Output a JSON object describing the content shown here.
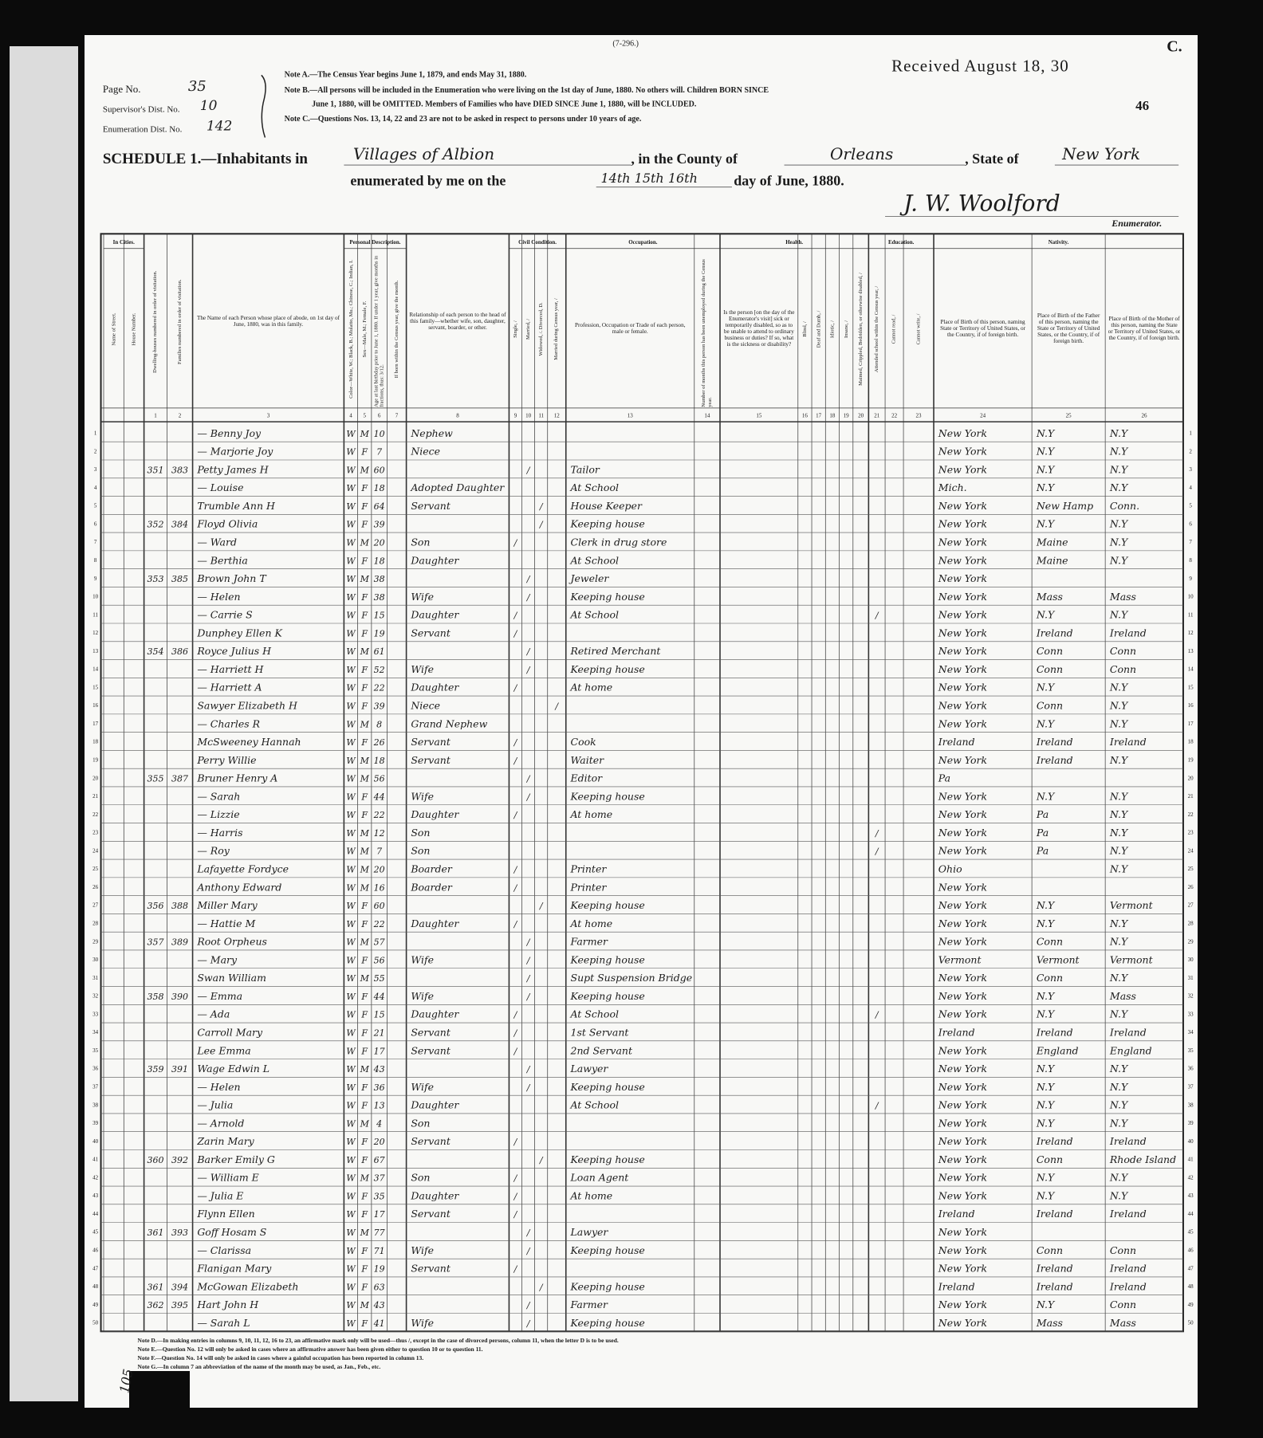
{
  "header": {
    "form_number": "(7-296.)",
    "page_label": "Page No.",
    "page_value": "35",
    "supervisor_label": "Supervisor's Dist. No.",
    "supervisor_value": "10",
    "enumeration_label": "Enumeration Dist. No.",
    "enumeration_value": "142",
    "notes": [
      "Note A.—The Census Year begins June 1, 1879, and ends May 31, 1880.",
      "Note B.—All persons will be included in the Enumeration who were living on the 1st day of June, 1880. No others will. Children BORN SINCE",
      "June 1, 1880, will be OMITTED. Members of Families who have DIED SINCE June 1, 1880, will be INCLUDED.",
      "Note C.—Questions Nos. 13, 14, 22 and 23 are not to be asked in respect to persons under 10 years of age."
    ],
    "received": "Received August 18, 30",
    "sheet_number": "46",
    "corner_mark": "C."
  },
  "schedule": {
    "prefix": "SCHEDULE 1.—Inhabitants in",
    "place": "Villages of Albion",
    "county_label": ", in the County of",
    "county": "Orleans",
    "state_label": ", State of",
    "state": "New York",
    "date_prefix": "enumerated by me on the",
    "dates": "14th 15th 16th",
    "date_suffix": "day of June, 1880.",
    "enumerator": "J. W. Woolford",
    "enumerator_label": "Enumerator."
  },
  "table": {
    "groups": {
      "in_cities": "In Cities.",
      "personal": "Personal Description.",
      "civil": "Civil Condition.",
      "occupation": "Occupation.",
      "health": "Health.",
      "education": "Education.",
      "nativity": "Nativity."
    },
    "columns": {
      "street": {
        "label": "Name of Street."
      },
      "house": {
        "label": "House Number."
      },
      "dwelling": {
        "label": "Dwelling-houses numbered in order of visitation.",
        "number": 1
      },
      "family": {
        "label": "Families numbered in order of visitation.",
        "number": 2
      },
      "name": {
        "label": "The Name of each Person whose place of abode, on 1st day of June, 1880, was in this family.",
        "number": 3
      },
      "color": {
        "label": "Color—White, W.; Black, B.; Mulatto, Mu.; Chinese, C.; Indian, I.",
        "number": 4
      },
      "sex": {
        "label": "Sex—Male, M.; Female, F.",
        "number": 5
      },
      "age": {
        "label": "Age at last birthday prior to June 1, 1880. If under 1 year, give months in fractions, thus: 3/12.",
        "number": 6
      },
      "month": {
        "label": "If born within the Census year, give the month.",
        "number": 7
      },
      "relation": {
        "label": "Relationship of each person to the head of this family—whether wife, son, daughter, servant, boarder, or other.",
        "number": 8
      },
      "single": {
        "label": "Single, /",
        "number": 9
      },
      "married": {
        "label": "Married, /",
        "number": 10
      },
      "widowed": {
        "label": "Widowed, /. Divorced, D.",
        "number": 11
      },
      "married_year": {
        "label": "Married during Census year, /",
        "number": 12
      },
      "occupation": {
        "label": "Profession, Occupation or Trade of each person, male or female.",
        "number": 13
      },
      "unemployed": {
        "label": "Number of months this person has been unemployed during the Census year.",
        "number": 14
      },
      "sickness": {
        "label": "Is the person [on the day of the Enumerator's visit] sick or temporarily disabled, so as to be unable to attend to ordinary business or duties? If so, what is the sickness or disability?",
        "number": 15
      },
      "blind": {
        "label": "Blind, /",
        "number": 16
      },
      "deaf": {
        "label": "Deaf and Dumb, /",
        "number": 17
      },
      "idiotic": {
        "label": "Idiotic, /",
        "number": 18
      },
      "insane": {
        "label": "Insane, /",
        "number": 19
      },
      "maimed": {
        "label": "Maimed, Crippled, Bedridden, or otherwise disabled, /",
        "number": 20
      },
      "school": {
        "label": "Attended school within the Census year, /",
        "number": 21
      },
      "read": {
        "label": "Cannot read, /",
        "number": 22
      },
      "write": {
        "label": "Cannot write, /",
        "number": 23
      },
      "birth": {
        "label": "Place of Birth of this person, naming State or Territory of United States, or the Country, if of foreign birth.",
        "number": 24
      },
      "father": {
        "label": "Place of Birth of the Father of this person, naming the State or Territory of United States, or the Country, if of foreign birth.",
        "number": 25
      },
      "mother": {
        "label": "Place of Birth of the Mother of this person, naming the State or Territory of United States, or the Country, if of foreign birth.",
        "number": 26
      }
    },
    "rows": [
      {
        "line": 1,
        "name": "— Benny Joy",
        "color": "W",
        "sex": "M",
        "age": 10,
        "relation": "Nephew",
        "birth": "New York",
        "father": "N.Y",
        "mother": "N.Y"
      },
      {
        "line": 2,
        "name": "— Marjorie Joy",
        "color": "W",
        "sex": "F",
        "age": 7,
        "relation": "Niece",
        "birth": "New York",
        "father": "N.Y",
        "mother": "N.Y"
      },
      {
        "line": 3,
        "dwelling": 351,
        "family": 383,
        "name": "Petty James H",
        "color": "W",
        "sex": "M",
        "age": 60,
        "married": "/",
        "occupation": "Tailor",
        "birth": "New York",
        "father": "N.Y",
        "mother": "N.Y"
      },
      {
        "line": 4,
        "name": "— Louise",
        "color": "W",
        "sex": "F",
        "age": 18,
        "relation": "Adopted Daughter",
        "occupation": "At School",
        "birth": "Mich.",
        "father": "N.Y",
        "mother": "N.Y"
      },
      {
        "line": 5,
        "name": "Trumble Ann H",
        "color": "W",
        "sex": "F",
        "age": 64,
        "relation": "Servant",
        "widowed": "/",
        "occupation": "House Keeper",
        "birth": "New York",
        "father": "New Hamp",
        "mother": "Conn."
      },
      {
        "line": 6,
        "dwelling": 352,
        "family": 384,
        "name": "Floyd Olivia",
        "color": "W",
        "sex": "F",
        "age": 39,
        "widowed": "/",
        "occupation": "Keeping house",
        "birth": "New York",
        "father": "N.Y",
        "mother": "N.Y"
      },
      {
        "line": 7,
        "name": "— Ward",
        "color": "W",
        "sex": "M",
        "age": 20,
        "relation": "Son",
        "single": "/",
        "occupation": "Clerk in drug store",
        "birth": "New York",
        "father": "Maine",
        "mother": "N.Y"
      },
      {
        "line": 8,
        "name": "— Berthia",
        "color": "W",
        "sex": "F",
        "age": 18,
        "relation": "Daughter",
        "occupation": "At School",
        "birth": "New York",
        "father": "Maine",
        "mother": "N.Y"
      },
      {
        "line": 9,
        "dwelling": 353,
        "family": 385,
        "name": "Brown John T",
        "color": "W",
        "sex": "M",
        "age": 38,
        "married": "/",
        "occupation": "Jeweler",
        "birth": "New York"
      },
      {
        "line": 10,
        "name": "— Helen",
        "color": "W",
        "sex": "F",
        "age": 38,
        "relation": "Wife",
        "married": "/",
        "occupation": "Keeping house",
        "birth": "New York",
        "father": "Mass",
        "mother": "Mass"
      },
      {
        "line": 11,
        "name": "— Carrie S",
        "color": "W",
        "sex": "F",
        "age": 15,
        "relation": "Daughter",
        "single": "/",
        "occupation": "At School",
        "school": "/",
        "birth": "New York",
        "father": "N.Y",
        "mother": "N.Y"
      },
      {
        "line": 12,
        "name": "Dunphey Ellen K",
        "color": "W",
        "sex": "F",
        "age": 19,
        "relation": "Servant",
        "single": "/",
        "birth": "New York",
        "father": "Ireland",
        "mother": "Ireland"
      },
      {
        "line": 13,
        "dwelling": 354,
        "family": 386,
        "name": "Royce Julius H",
        "color": "W",
        "sex": "M",
        "age": 61,
        "married": "/",
        "occupation": "Retired Merchant",
        "birth": "New York",
        "father": "Conn",
        "mother": "Conn"
      },
      {
        "line": 14,
        "name": "— Harriett H",
        "color": "W",
        "sex": "F",
        "age": 52,
        "relation": "Wife",
        "married": "/",
        "occupation": "Keeping house",
        "birth": "New York",
        "father": "Conn",
        "mother": "Conn"
      },
      {
        "line": 15,
        "name": "— Harriett A",
        "color": "W",
        "sex": "F",
        "age": 22,
        "relation": "Daughter",
        "single": "/",
        "occupation": "At home",
        "birth": "New York",
        "father": "N.Y",
        "mother": "N.Y"
      },
      {
        "line": 16,
        "name": "Sawyer Elizabeth H",
        "color": "W",
        "sex": "F",
        "age": 39,
        "relation": "Niece",
        "married_year": "/",
        "birth": "New York",
        "father": "Conn",
        "mother": "N.Y"
      },
      {
        "line": 17,
        "name": "— Charles R",
        "color": "W",
        "sex": "M",
        "age": 8,
        "relation": "Grand Nephew",
        "birth": "New York",
        "father": "N.Y",
        "mother": "N.Y"
      },
      {
        "line": 18,
        "name": "McSweeney Hannah",
        "color": "W",
        "sex": "F",
        "age": 26,
        "relation": "Servant",
        "single": "/",
        "occupation": "Cook",
        "birth": "Ireland",
        "father": "Ireland",
        "mother": "Ireland"
      },
      {
        "line": 19,
        "name": "Perry Willie",
        "color": "W",
        "sex": "M",
        "age": 18,
        "relation": "Servant",
        "single": "/",
        "occupation": "Waiter",
        "birth": "New York",
        "father": "Ireland",
        "mother": "N.Y"
      },
      {
        "line": 20,
        "dwelling": 355,
        "family": 387,
        "name": "Bruner Henry A",
        "color": "W",
        "sex": "M",
        "age": 56,
        "married": "/",
        "occupation": "Editor",
        "birth": "Pa"
      },
      {
        "line": 21,
        "name": "— Sarah",
        "color": "W",
        "sex": "F",
        "age": 44,
        "relation": "Wife",
        "married": "/",
        "occupation": "Keeping house",
        "birth": "New York",
        "father": "N.Y",
        "mother": "N.Y"
      },
      {
        "line": 22,
        "name": "— Lizzie",
        "color": "W",
        "sex": "F",
        "age": 22,
        "relation": "Daughter",
        "single": "/",
        "occupation": "At home",
        "birth": "New York",
        "father": "Pa",
        "mother": "N.Y"
      },
      {
        "line": 23,
        "name": "— Harris",
        "color": "W",
        "sex": "M",
        "age": 12,
        "relation": "Son",
        "school": "/",
        "birth": "New York",
        "father": "Pa",
        "mother": "N.Y"
      },
      {
        "line": 24,
        "name": "— Roy",
        "color": "W",
        "sex": "M",
        "age": 7,
        "relation": "Son",
        "school": "/",
        "birth": "New York",
        "father": "Pa",
        "mother": "N.Y"
      },
      {
        "line": 25,
        "name": "Lafayette Fordyce",
        "color": "W",
        "sex": "M",
        "age": 20,
        "relation": "Boarder",
        "single": "/",
        "occupation": "Printer",
        "birth": "Ohio",
        "mother": "N.Y"
      },
      {
        "line": 26,
        "name": "Anthony Edward",
        "color": "W",
        "sex": "M",
        "age": 16,
        "relation": "Boarder",
        "single": "/",
        "occupation": "Printer",
        "birth": "New York"
      },
      {
        "line": 27,
        "dwelling": 356,
        "family": 388,
        "name": "Miller Mary",
        "color": "W",
        "sex": "F",
        "age": 60,
        "widowed": "/",
        "occupation": "Keeping house",
        "birth": "New York",
        "father": "N.Y",
        "mother": "Vermont"
      },
      {
        "line": 28,
        "name": "— Hattie M",
        "color": "W",
        "sex": "F",
        "age": 22,
        "relation": "Daughter",
        "single": "/",
        "occupation": "At home",
        "birth": "New York",
        "father": "N.Y",
        "mother": "N.Y"
      },
      {
        "line": 29,
        "dwelling": 357,
        "family": 389,
        "name": "Root Orpheus",
        "color": "W",
        "sex": "M",
        "age": 57,
        "married": "/",
        "occupation": "Farmer",
        "birth": "New York",
        "father": "Conn",
        "mother": "N.Y"
      },
      {
        "line": 30,
        "name": "— Mary",
        "color": "W",
        "sex": "F",
        "age": 56,
        "relation": "Wife",
        "married": "/",
        "occupation": "Keeping house",
        "birth": "Vermont",
        "father": "Vermont",
        "mother": "Vermont"
      },
      {
        "line": 31,
        "name": "Swan William",
        "color": "W",
        "sex": "M",
        "age": 55,
        "married": "/",
        "occupation": "Supt Suspension Bridge",
        "birth": "New York",
        "father": "Conn",
        "mother": "N.Y"
      },
      {
        "line": 32,
        "dwelling": 358,
        "family": 390,
        "name": "— Emma",
        "color": "W",
        "sex": "F",
        "age": 44,
        "relation": "Wife",
        "married": "/",
        "occupation": "Keeping house",
        "birth": "New York",
        "father": "N.Y",
        "mother": "Mass"
      },
      {
        "line": 33,
        "name": "— Ada",
        "color": "W",
        "sex": "F",
        "age": 15,
        "relation": "Daughter",
        "single": "/",
        "occupation": "At School",
        "school": "/",
        "birth": "New York",
        "father": "N.Y",
        "mother": "N.Y"
      },
      {
        "line": 34,
        "name": "Carroll Mary",
        "color": "W",
        "sex": "F",
        "age": 21,
        "relation": "Servant",
        "single": "/",
        "occupation": "1st Servant",
        "birth": "Ireland",
        "father": "Ireland",
        "mother": "Ireland"
      },
      {
        "line": 35,
        "name": "Lee Emma",
        "color": "W",
        "sex": "F",
        "age": 17,
        "relation": "Servant",
        "single": "/",
        "occupation": "2nd Servant",
        "birth": "New York",
        "father": "England",
        "mother": "England"
      },
      {
        "line": 36,
        "dwelling": 359,
        "family": 391,
        "name": "Wage Edwin L",
        "color": "W",
        "sex": "M",
        "age": 43,
        "married": "/",
        "occupation": "Lawyer",
        "birth": "New York",
        "father": "N.Y",
        "mother": "N.Y"
      },
      {
        "line": 37,
        "name": "— Helen",
        "color": "W",
        "sex": "F",
        "age": 36,
        "relation": "Wife",
        "married": "/",
        "occupation": "Keeping house",
        "birth": "New York",
        "father": "N.Y",
        "mother": "N.Y"
      },
      {
        "line": 38,
        "name": "— Julia",
        "color": "W",
        "sex": "F",
        "age": 13,
        "relation": "Daughter",
        "occupation": "At School",
        "school": "/",
        "birth": "New York",
        "father": "N.Y",
        "mother": "N.Y"
      },
      {
        "line": 39,
        "name": "— Arnold",
        "color": "W",
        "sex": "M",
        "age": 4,
        "relation": "Son",
        "birth": "New York",
        "father": "N.Y",
        "mother": "N.Y"
      },
      {
        "line": 40,
        "name": "Zarin Mary",
        "color": "W",
        "sex": "F",
        "age": 20,
        "relation": "Servant",
        "single": "/",
        "birth": "New York",
        "father": "Ireland",
        "mother": "Ireland"
      },
      {
        "line": 41,
        "dwelling": 360,
        "family": 392,
        "name": "Barker Emily G",
        "color": "W",
        "sex": "F",
        "age": 67,
        "widowed": "/",
        "occupation": "Keeping house",
        "birth": "New York",
        "father": "Conn",
        "mother": "Rhode Island"
      },
      {
        "line": 42,
        "name": "— William E",
        "color": "W",
        "sex": "M",
        "age": 37,
        "relation": "Son",
        "single": "/",
        "occupation": "Loan Agent",
        "birth": "New York",
        "father": "N.Y",
        "mother": "N.Y"
      },
      {
        "line": 43,
        "name": "— Julia E",
        "color": "W",
        "sex": "F",
        "age": 35,
        "relation": "Daughter",
        "single": "/",
        "occupation": "At home",
        "birth": "New York",
        "father": "N.Y",
        "mother": "N.Y"
      },
      {
        "line": 44,
        "name": "Flynn Ellen",
        "color": "W",
        "sex": "F",
        "age": 17,
        "relation": "Servant",
        "single": "/",
        "birth": "Ireland",
        "father": "Ireland",
        "mother": "Ireland"
      },
      {
        "line": 45,
        "dwelling": 361,
        "family": 393,
        "name": "Goff Hosam S",
        "color": "W",
        "sex": "M",
        "age": 77,
        "married": "/",
        "occupation": "Lawyer",
        "birth": "New York"
      },
      {
        "line": 46,
        "name": "— Clarissa",
        "color": "W",
        "sex": "F",
        "age": 71,
        "relation": "Wife",
        "married": "/",
        "occupation": "Keeping house",
        "birth": "New York",
        "father": "Conn",
        "mother": "Conn"
      },
      {
        "line": 47,
        "name": "Flanigan Mary",
        "color": "W",
        "sex": "F",
        "age": 19,
        "relation": "Servant",
        "single": "/",
        "birth": "New York",
        "father": "Ireland",
        "mother": "Ireland"
      },
      {
        "line": 48,
        "dwelling": 361,
        "family": 394,
        "name": "McGowan Elizabeth",
        "color": "W",
        "sex": "F",
        "age": 63,
        "widowed": "/",
        "occupation": "Keeping house",
        "birth": "Ireland",
        "father": "Ireland",
        "mother": "Ireland"
      },
      {
        "line": 49,
        "dwelling": 362,
        "family": 395,
        "name": "Hart John H",
        "color": "W",
        "sex": "M",
        "age": 43,
        "married": "/",
        "occupation": "Farmer",
        "birth": "New York",
        "father": "N.Y",
        "mother": "Conn"
      },
      {
        "line": 50,
        "name": "— Sarah L",
        "color": "W",
        "sex": "F",
        "age": 41,
        "relation": "Wife",
        "married": "/",
        "occupation": "Keeping house",
        "birth": "New York",
        "father": "Mass",
        "mother": "Mass"
      }
    ]
  },
  "footnotes": [
    "Note D.—In making entries in columns 9, 10, 11, 12, 16 to 23, an affirmative mark only will be used—thus /, except in the case of divorced persons, column 11, when the letter D is to be used.",
    "Note E.—Question No. 12 will only be asked in cases where an affirmative answer has been given either to question 10 or to question 11.",
    "Note F.—Question No. 14 will only be asked in cases where a gainful occupation has been reported in column 13.",
    "Note G.—In column 7 an abbreviation of the name of the month may be used, as Jan., Feb., etc."
  ],
  "margin_note": "105"
}
